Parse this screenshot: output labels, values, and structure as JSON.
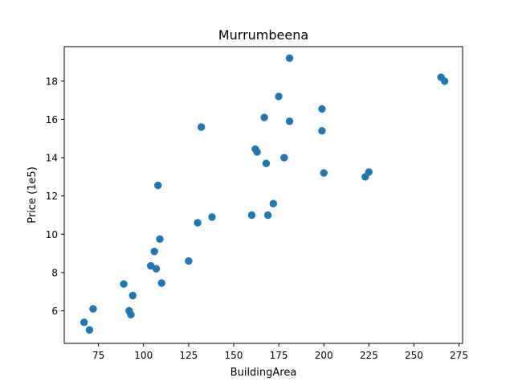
{
  "chart_data": {
    "type": "scatter",
    "title": "Murrumbeena",
    "xlabel": "BuildingArea",
    "ylabel": "Price (1e5)",
    "xlim": [
      56,
      277
    ],
    "ylim": [
      4.3,
      19.8
    ],
    "xticks": [
      75,
      100,
      125,
      150,
      175,
      200,
      225,
      250,
      275
    ],
    "yticks": [
      6,
      8,
      10,
      12,
      14,
      16,
      18
    ],
    "grid": false,
    "color": "#1f77b4",
    "points": [
      {
        "x": 67,
        "y": 5.4
      },
      {
        "x": 70,
        "y": 5.0
      },
      {
        "x": 72,
        "y": 6.1
      },
      {
        "x": 89,
        "y": 7.4
      },
      {
        "x": 92,
        "y": 6.0
      },
      {
        "x": 93,
        "y": 5.8
      },
      {
        "x": 94,
        "y": 6.8
      },
      {
        "x": 104,
        "y": 8.35
      },
      {
        "x": 106,
        "y": 9.1
      },
      {
        "x": 107,
        "y": 8.2
      },
      {
        "x": 108,
        "y": 12.55
      },
      {
        "x": 109,
        "y": 9.75
      },
      {
        "x": 110,
        "y": 7.45
      },
      {
        "x": 125,
        "y": 8.6
      },
      {
        "x": 130,
        "y": 10.6
      },
      {
        "x": 132,
        "y": 15.6
      },
      {
        "x": 138,
        "y": 10.9
      },
      {
        "x": 160,
        "y": 11.0
      },
      {
        "x": 162,
        "y": 14.45
      },
      {
        "x": 163,
        "y": 14.3
      },
      {
        "x": 167,
        "y": 16.1
      },
      {
        "x": 168,
        "y": 13.7
      },
      {
        "x": 169,
        "y": 11.0
      },
      {
        "x": 172,
        "y": 11.6
      },
      {
        "x": 175,
        "y": 17.2
      },
      {
        "x": 178,
        "y": 14.0
      },
      {
        "x": 181,
        "y": 19.2
      },
      {
        "x": 181,
        "y": 15.9
      },
      {
        "x": 199,
        "y": 16.55
      },
      {
        "x": 199,
        "y": 15.4
      },
      {
        "x": 200,
        "y": 13.2
      },
      {
        "x": 223,
        "y": 13.0
      },
      {
        "x": 225,
        "y": 13.25
      },
      {
        "x": 265,
        "y": 18.2
      },
      {
        "x": 267,
        "y": 18.0
      }
    ]
  }
}
